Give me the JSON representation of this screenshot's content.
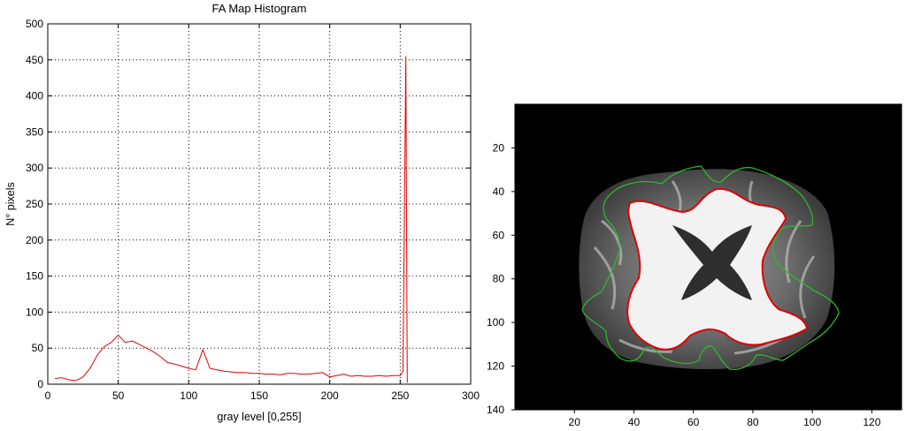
{
  "chart_data": [
    {
      "type": "line",
      "title": "FA Map Histogram",
      "xlabel": "gray level [0,255]",
      "ylabel": "N° pixels",
      "xlim": [
        0,
        300
      ],
      "ylim": [
        0,
        500
      ],
      "xticks": [
        "0",
        "50",
        "100",
        "150",
        "200",
        "250",
        "300"
      ],
      "yticks": [
        "0",
        "50",
        "100",
        "150",
        "200",
        "250",
        "300",
        "350",
        "400",
        "450",
        "500"
      ],
      "grid": true,
      "line_color": "#e00000",
      "series": [
        {
          "x": [
            5,
            10,
            15,
            20,
            25,
            30,
            35,
            40,
            45,
            50,
            55,
            60,
            65,
            70,
            75,
            80,
            85,
            90,
            95,
            100,
            105,
            110,
            115,
            120,
            125,
            130,
            135,
            140,
            145,
            150,
            155,
            160,
            165,
            170,
            175,
            180,
            185,
            190,
            195,
            200,
            205,
            210,
            215,
            220,
            225,
            230,
            235,
            240,
            245,
            250,
            252,
            253,
            254,
            255
          ],
          "values": [
            8,
            9,
            6,
            5,
            10,
            22,
            40,
            52,
            58,
            68,
            58,
            60,
            55,
            50,
            45,
            38,
            30,
            28,
            25,
            22,
            20,
            48,
            22,
            20,
            18,
            17,
            16,
            16,
            15,
            15,
            14,
            14,
            13,
            15,
            15,
            14,
            14,
            15,
            16,
            10,
            12,
            14,
            11,
            12,
            11,
            11,
            12,
            11,
            12,
            12,
            18,
            240,
            455,
            2
          ]
        }
      ]
    },
    {
      "type": "heatmap",
      "xlim": [
        0,
        130
      ],
      "ylim": [
        140,
        0
      ],
      "xticks": [
        "20",
        "40",
        "60",
        "80",
        "100",
        "120"
      ],
      "yticks": [
        "20",
        "40",
        "60",
        "80",
        "100",
        "120",
        "140"
      ],
      "background_color": "#000000",
      "contour_colors": {
        "inner": "#e00000",
        "outer": "#2db82d"
      }
    }
  ]
}
